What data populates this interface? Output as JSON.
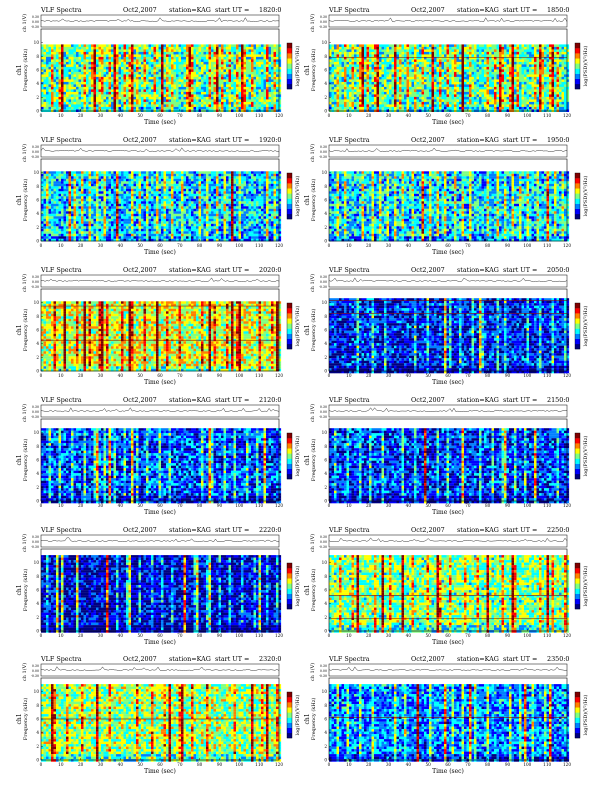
{
  "figure": {
    "title_prefix": "VLF Spectra",
    "date": "Oct2,2007",
    "station": "station=KAG",
    "start_label": "start  UT  =",
    "ch1_label": "ch 1(V)",
    "channel_label": "ch1",
    "ylabel": "Frequency (kHz)",
    "xlabel": "Time (sec)",
    "colorbar_label": "log(PSD)(V²/Hz)",
    "ch_ticks": [
      "0.30",
      "0.00",
      "-0.30"
    ],
    "y_ticks": [
      "0",
      "2",
      "4",
      "6",
      "8",
      "10"
    ],
    "x_ticks": [
      "0",
      "10",
      "20",
      "30",
      "40",
      "50",
      "60",
      "70",
      "80",
      "90",
      "100",
      "110",
      "120"
    ],
    "colorbar": [
      "#00007f",
      "#0000ff",
      "#0080ff",
      "#00ffff",
      "#80ff80",
      "#ffff00",
      "#ff8000",
      "#ff0000",
      "#7f0000"
    ]
  },
  "chart_data": [
    {
      "type": "heatmap",
      "start_ut": "1820:0",
      "title": "VLF Spectra  Oct2,2007  station=KAG  start UT =1820:0",
      "xlabel": "Time (sec)",
      "ylabel": "Frequency (kHz)",
      "xlim": [
        0,
        120
      ],
      "ylim": [
        0,
        10
      ],
      "band_top_khz": 9.5,
      "level": 0.45,
      "seed": 11,
      "stripes": [
        5,
        9,
        12,
        17,
        21,
        25,
        29,
        30,
        34,
        38,
        42,
        44,
        48,
        52,
        57,
        60,
        63,
        66,
        70,
        73,
        76,
        80,
        84,
        87,
        91,
        95,
        98,
        102,
        106,
        109,
        113,
        117
      ],
      "hot_stripes": [
        10,
        26,
        37,
        45,
        61,
        74,
        88,
        99,
        101
      ],
      "hlines": []
    },
    {
      "type": "heatmap",
      "start_ut": "1850:0",
      "title": "VLF Spectra  Oct2,2007  station=KAG  start UT =1850:0",
      "xlabel": "Time (sec)",
      "ylabel": "Frequency (kHz)",
      "xlim": [
        0,
        120
      ],
      "ylim": [
        0,
        10
      ],
      "band_top_khz": 9.5,
      "level": 0.45,
      "seed": 23,
      "stripes": [
        4,
        8,
        11,
        15,
        19,
        23,
        27,
        31,
        35,
        39,
        43,
        47,
        51,
        55,
        59,
        63,
        67,
        71,
        75,
        79,
        83,
        87,
        91,
        95,
        99,
        103,
        107,
        111,
        115,
        119
      ],
      "hot_stripes": [
        16,
        24,
        33,
        52,
        67,
        86,
        92,
        106,
        112
      ],
      "hlines": [
        7.8
      ]
    },
    {
      "type": "heatmap",
      "start_ut": "1920:0",
      "title": "VLF Spectra  Oct2,2007  station=KAG  start UT =1920:0",
      "xlabel": "Time (sec)",
      "ylabel": "Frequency (kHz)",
      "xlim": [
        0,
        120
      ],
      "ylim": [
        0,
        10
      ],
      "band_top_khz": 10,
      "level": 0.35,
      "seed": 37,
      "stripes": [
        3,
        7,
        12,
        16,
        20,
        24,
        28,
        32,
        36,
        41,
        45,
        49,
        53,
        58,
        62,
        66,
        71,
        75,
        79,
        83,
        88,
        92,
        96,
        100,
        104,
        109,
        113,
        117
      ],
      "hot_stripes": [
        14,
        38,
        60,
        80,
        96
      ],
      "hlines": []
    },
    {
      "type": "heatmap",
      "start_ut": "1950:0",
      "title": "VLF Spectra  Oct2,2007  station=KAG  start UT =1950:0",
      "xlabel": "Time (sec)",
      "ylabel": "Frequency (kHz)",
      "xlim": [
        0,
        120
      ],
      "ylim": [
        0,
        10
      ],
      "band_top_khz": 10,
      "level": 0.35,
      "seed": 41,
      "stripes": [
        4,
        8,
        12,
        16,
        21,
        25,
        29,
        33,
        37,
        42,
        46,
        50,
        54,
        58,
        63,
        67,
        71,
        75,
        79,
        84,
        88,
        92,
        96,
        100,
        105,
        109,
        113,
        117
      ],
      "hot_stripes": [
        2,
        27,
        47,
        75,
        90,
        110
      ],
      "hlines": []
    },
    {
      "type": "heatmap",
      "start_ut": "2020:0",
      "title": "VLF Spectra  Oct2,2007  station=KAG  start UT =2020:0",
      "xlabel": "Time (sec)",
      "ylabel": "Frequency (kHz)",
      "xlim": [
        0,
        120
      ],
      "ylim": [
        0,
        10
      ],
      "band_top_khz": 10,
      "level": 0.58,
      "seed": 53,
      "stripes": [
        6,
        12,
        18,
        24,
        29,
        33,
        40,
        45,
        52,
        58,
        63,
        69,
        75,
        81,
        87,
        93,
        98,
        104,
        110,
        116
      ],
      "hot_stripes": [
        11,
        21,
        30,
        44,
        58,
        84,
        96,
        100,
        118
      ],
      "hlines": [
        4.5,
        9.5
      ]
    },
    {
      "type": "heatmap",
      "start_ut": "2050:0",
      "title": "VLF Spectra  Oct2,2007  station=KAG  start UT =2050:0",
      "xlabel": "Time (sec)",
      "ylabel": "Frequency (kHz)",
      "xlim": [
        0,
        120
      ],
      "ylim": [
        0,
        10
      ],
      "band_top_khz": 10.5,
      "level": 0.18,
      "seed": 67,
      "stripes": [
        14,
        21,
        28,
        36,
        43,
        49,
        56,
        61,
        66,
        72,
        77,
        84,
        88,
        94,
        100,
        106,
        112,
        118
      ],
      "hot_stripes": [
        58,
        76,
        104
      ],
      "hlines": [
        8.4,
        10.3
      ]
    },
    {
      "type": "heatmap",
      "start_ut": "2120:0",
      "title": "VLF Spectra  Oct2,2007  station=KAG  start UT =2120:0",
      "xlabel": "Time (sec)",
      "ylabel": "Frequency (kHz)",
      "xlim": [
        0,
        120
      ],
      "ylim": [
        0,
        10
      ],
      "band_top_khz": 10.5,
      "level": 0.22,
      "seed": 71,
      "stripes": [
        4,
        9,
        15,
        21,
        26,
        32,
        37,
        42,
        48,
        53,
        59,
        64,
        70,
        75,
        81,
        86,
        92,
        97,
        103,
        108,
        114,
        119
      ],
      "hot_stripes": [
        28,
        34,
        45,
        84,
        112
      ],
      "hlines": []
    },
    {
      "type": "heatmap",
      "start_ut": "2150:0",
      "title": "VLF Spectra  Oct2,2007  station=KAG  start UT =2150:0",
      "xlabel": "Time (sec)",
      "ylabel": "Frequency (kHz)",
      "xlim": [
        0,
        120
      ],
      "ylim": [
        0,
        10
      ],
      "band_top_khz": 10.5,
      "level": 0.2,
      "seed": 83,
      "stripes": [
        3,
        9,
        15,
        20,
        26,
        31,
        37,
        43,
        48,
        54,
        59,
        65,
        70,
        76,
        82,
        87,
        93,
        98,
        104,
        109,
        115
      ],
      "hot_stripes": [
        22,
        48,
        67,
        88,
        103
      ],
      "hlines": []
    },
    {
      "type": "heatmap",
      "start_ut": "2220:0",
      "title": "VLF Spectra  Oct2,2007  station=KAG  start UT =2220:0",
      "xlabel": "Time (sec)",
      "ylabel": "Frequency (kHz)",
      "xlim": [
        0,
        120
      ],
      "ylim": [
        0,
        10
      ],
      "band_top_khz": 11,
      "level": 0.12,
      "seed": 97,
      "stripes": [
        3,
        7,
        12,
        17,
        22,
        27,
        33,
        38,
        43,
        49,
        55,
        61,
        66,
        72,
        77,
        83,
        89,
        95,
        101,
        107,
        113,
        118
      ],
      "hot_stripes": [
        8,
        10,
        18,
        27,
        33,
        44,
        72,
        78,
        84,
        104,
        110
      ],
      "hlines": []
    },
    {
      "type": "heatmap",
      "start_ut": "2250:0",
      "title": "VLF Spectra  Oct2,2007  station=KAG  start UT =2250:0",
      "xlabel": "Time (sec)",
      "ylabel": "Frequency (kHz)",
      "xlim": [
        0,
        120
      ],
      "ylim": [
        0,
        10
      ],
      "band_top_khz": 11,
      "level": 0.5,
      "seed": 101,
      "stripes": [
        5,
        11,
        17,
        23,
        30,
        36,
        42,
        49,
        55,
        61,
        68,
        74,
        80,
        87,
        93,
        99,
        106,
        112,
        118
      ],
      "hot_stripes": [
        14,
        26,
        37,
        54,
        79,
        92,
        99,
        110
      ],
      "hlines": [
        1.8,
        5.2
      ]
    },
    {
      "type": "heatmap",
      "start_ut": "2320:0",
      "title": "VLF Spectra  Oct2,2007  station=KAG  start UT =2320:0",
      "xlabel": "Time (sec)",
      "ylabel": "Frequency (kHz)",
      "xlim": [
        0,
        120
      ],
      "ylim": [
        0,
        10
      ],
      "band_top_khz": 11,
      "level": 0.52,
      "seed": 113,
      "stripes": [
        6,
        13,
        20,
        27,
        34,
        41,
        48,
        55,
        62,
        69,
        76,
        83,
        90,
        97,
        104,
        111,
        118
      ],
      "hot_stripes": [
        5,
        28,
        36,
        64,
        71,
        90,
        106,
        113
      ],
      "hlines": [
        6.0
      ]
    },
    {
      "type": "heatmap",
      "start_ut": "2350:0",
      "title": "VLF Spectra  Oct2,2007  station=KAG  start UT =2350:0",
      "xlabel": "Time (sec)",
      "ylabel": "Frequency (kHz)",
      "xlim": [
        0,
        120
      ],
      "ylim": [
        0,
        10
      ],
      "band_top_khz": 11,
      "level": 0.28,
      "seed": 127,
      "stripes": [
        4,
        9,
        15,
        21,
        27,
        33,
        38,
        44,
        50,
        56,
        62,
        67,
        73,
        79,
        85,
        91,
        96,
        102,
        108,
        114,
        119
      ],
      "hot_stripes": [
        12,
        22,
        31,
        44,
        58,
        71,
        98,
        111
      ],
      "hlines": [
        6.2
      ]
    }
  ]
}
